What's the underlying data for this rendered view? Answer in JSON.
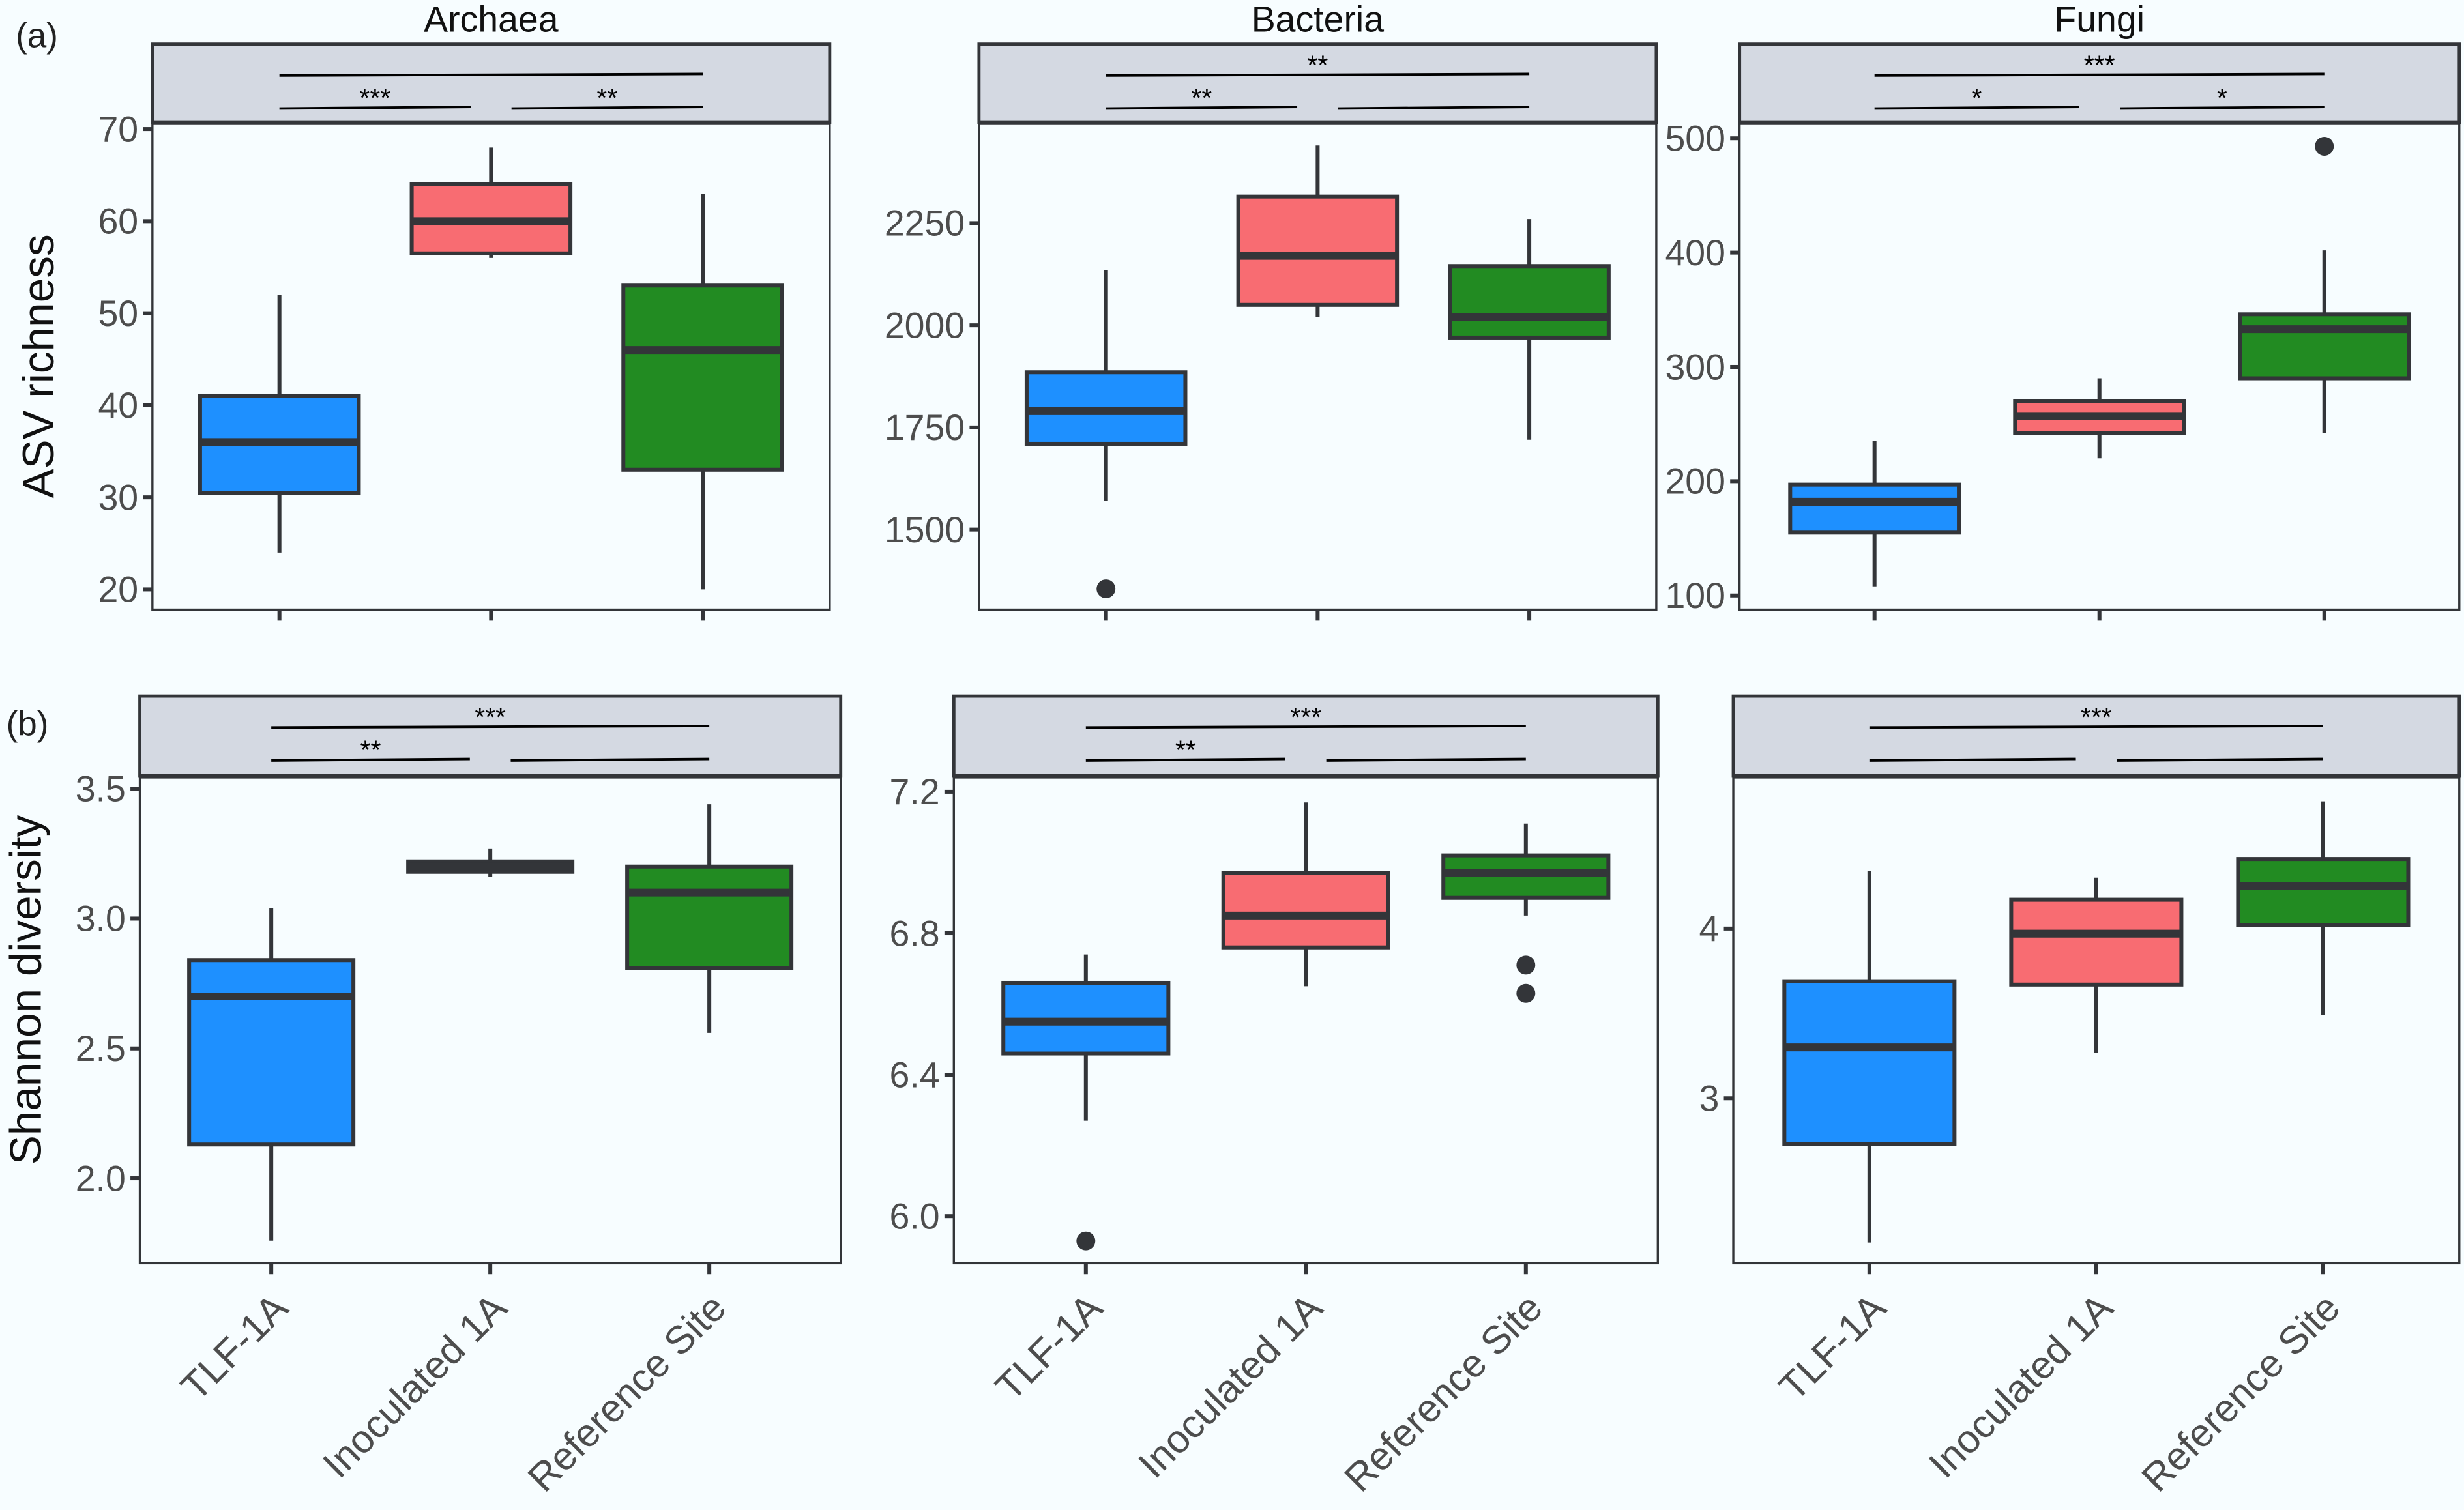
{
  "panel_tags": [
    "(a)",
    "(b)"
  ],
  "row_ylabels": [
    "ASV richness",
    "Shannon diversity"
  ],
  "colors": {
    "TLF-1A": "#1E90FF",
    "Inoculated 1A": "#F86C72",
    "Reference Site": "#228B22",
    "strip": "#D4D9E2",
    "outline": "#333539",
    "background": "#F7FDFF"
  },
  "chart_data": [
    {
      "type": "box",
      "row": 0,
      "title": "Archaea",
      "ylabel": "ASV richness",
      "categories": [
        "TLF-1A",
        "Inoculated 1A",
        "Reference Site"
      ],
      "ylim": [
        17.8,
        70.7
      ],
      "yticks": [
        20,
        30,
        40,
        50,
        60,
        70
      ],
      "boxes": [
        {
          "min": 24,
          "q1": 30.5,
          "median": 36,
          "q3": 41,
          "max": 52,
          "outliers": []
        },
        {
          "min": 56,
          "q1": 56.5,
          "median": 60,
          "q3": 64,
          "max": 68,
          "outliers": []
        },
        {
          "min": 20,
          "q1": 33,
          "median": 46,
          "q3": 53,
          "max": 63,
          "outliers": []
        }
      ],
      "significance": [
        {
          "from": 0,
          "to": 2,
          "level": 1,
          "label": ""
        },
        {
          "from": 0,
          "to": 1,
          "level": 0,
          "label": "***"
        },
        {
          "from": 1,
          "to": 2,
          "level": 0,
          "label": "**"
        }
      ]
    },
    {
      "type": "box",
      "row": 0,
      "title": "Bacteria",
      "ylabel": "ASV richness",
      "categories": [
        "TLF-1A",
        "Inoculated 1A",
        "Reference Site"
      ],
      "ylim": [
        1304,
        2496
      ],
      "yticks": [
        1500,
        1750,
        2000,
        2250
      ],
      "boxes": [
        {
          "min": 1570,
          "q1": 1710,
          "median": 1790,
          "q3": 1885,
          "max": 2135,
          "outliers": [
            1355
          ]
        },
        {
          "min": 2020,
          "q1": 2050,
          "median": 2170,
          "q3": 2315,
          "max": 2440,
          "outliers": []
        },
        {
          "min": 1720,
          "q1": 1970,
          "median": 2020,
          "q3": 2145,
          "max": 2260,
          "outliers": []
        }
      ],
      "significance": [
        {
          "from": 0,
          "to": 2,
          "level": 1,
          "label": "**"
        },
        {
          "from": 0,
          "to": 1,
          "level": 0,
          "label": "**"
        },
        {
          "from": 1,
          "to": 2,
          "level": 0,
          "label": ""
        }
      ]
    },
    {
      "type": "box",
      "row": 0,
      "title": "Fungi",
      "ylabel": "ASV richness",
      "categories": [
        "TLF-1A",
        "Inoculated 1A",
        "Reference Site"
      ],
      "ylim": [
        87.6,
        513.7
      ],
      "yticks": [
        100,
        200,
        300,
        400,
        500
      ],
      "boxes": [
        {
          "min": 108,
          "q1": 155,
          "median": 182,
          "q3": 197,
          "max": 235,
          "outliers": []
        },
        {
          "min": 220,
          "q1": 242,
          "median": 257,
          "q3": 270,
          "max": 290,
          "outliers": []
        },
        {
          "min": 242,
          "q1": 290,
          "median": 333,
          "q3": 346,
          "max": 402,
          "outliers": [
            493
          ]
        }
      ],
      "significance": [
        {
          "from": 0,
          "to": 2,
          "level": 1,
          "label": "***"
        },
        {
          "from": 0,
          "to": 1,
          "level": 0,
          "label": "*"
        },
        {
          "from": 1,
          "to": 2,
          "level": 0,
          "label": "*"
        }
      ]
    },
    {
      "type": "box",
      "row": 1,
      "title": "",
      "ylabel": "Shannon diversity",
      "categories": [
        "TLF-1A",
        "Inoculated 1A",
        "Reference Site"
      ],
      "ylim": [
        1.673,
        3.548
      ],
      "yticks": [
        "2.0",
        "2.5",
        "3.0",
        "3.5"
      ],
      "boxes": [
        {
          "min": 1.76,
          "q1": 2.13,
          "median": 2.7,
          "q3": 2.84,
          "max": 3.04,
          "outliers": []
        },
        {
          "min": 3.16,
          "q1": 3.18,
          "median": 3.2,
          "q3": 3.22,
          "max": 3.27,
          "outliers": []
        },
        {
          "min": 2.56,
          "q1": 2.81,
          "median": 3.1,
          "q3": 3.2,
          "max": 3.44,
          "outliers": []
        }
      ],
      "significance": [
        {
          "from": 0,
          "to": 2,
          "level": 1,
          "label": "***"
        },
        {
          "from": 0,
          "to": 1,
          "level": 0,
          "label": "**"
        },
        {
          "from": 1,
          "to": 2,
          "level": 0,
          "label": ""
        }
      ]
    },
    {
      "type": "box",
      "row": 1,
      "title": "",
      "ylabel": "Shannon diversity",
      "categories": [
        "TLF-1A",
        "Inoculated 1A",
        "Reference Site"
      ],
      "ylim": [
        5.867,
        7.244
      ],
      "yticks": [
        "6.0",
        "6.4",
        "6.8",
        "7.2"
      ],
      "boxes": [
        {
          "min": 6.27,
          "q1": 6.46,
          "median": 6.55,
          "q3": 6.66,
          "max": 6.74,
          "outliers": [
            5.93
          ]
        },
        {
          "min": 6.65,
          "q1": 6.76,
          "median": 6.85,
          "q3": 6.97,
          "max": 7.17,
          "outliers": []
        },
        {
          "min": 6.85,
          "q1": 6.9,
          "median": 6.97,
          "q3": 7.02,
          "max": 7.11,
          "outliers": [
            6.71,
            6.63
          ]
        }
      ],
      "significance": [
        {
          "from": 0,
          "to": 2,
          "level": 1,
          "label": "***"
        },
        {
          "from": 0,
          "to": 1,
          "level": 0,
          "label": "**"
        },
        {
          "from": 1,
          "to": 2,
          "level": 0,
          "label": ""
        }
      ]
    },
    {
      "type": "box",
      "row": 1,
      "title": "",
      "ylabel": "Shannon diversity",
      "categories": [
        "TLF-1A",
        "Inoculated 1A",
        "Reference Site"
      ],
      "ylim": [
        2.028,
        4.898
      ],
      "yticks": [
        3,
        4
      ],
      "boxes": [
        {
          "min": 2.15,
          "q1": 2.73,
          "median": 3.3,
          "q3": 3.69,
          "max": 4.34,
          "outliers": []
        },
        {
          "min": 3.27,
          "q1": 3.67,
          "median": 3.97,
          "q3": 4.17,
          "max": 4.3,
          "outliers": []
        },
        {
          "min": 3.49,
          "q1": 4.02,
          "median": 4.25,
          "q3": 4.41,
          "max": 4.75,
          "outliers": []
        }
      ],
      "significance": [
        {
          "from": 0,
          "to": 2,
          "level": 1,
          "label": "***"
        },
        {
          "from": 0,
          "to": 1,
          "level": 0,
          "label": ""
        },
        {
          "from": 1,
          "to": 2,
          "level": 0,
          "label": ""
        }
      ]
    }
  ]
}
